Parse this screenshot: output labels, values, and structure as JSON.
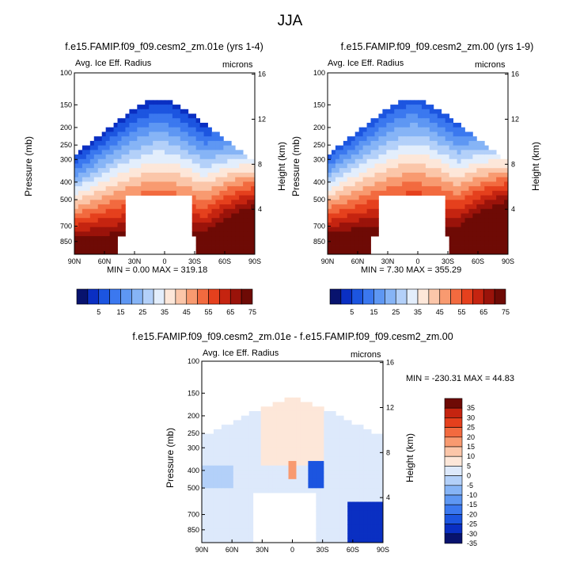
{
  "figure": {
    "title": "JJA"
  },
  "palettes": {
    "abs": [
      "#08136e",
      "#0a2fc2",
      "#1c55e0",
      "#3b78ef",
      "#5e97f3",
      "#86b4f6",
      "#b3d0f9",
      "#e3eefc",
      "#fde7d9",
      "#fbc6a9",
      "#f89a70",
      "#f26a3f",
      "#e5401d",
      "#c52410",
      "#9a130a",
      "#6e0a05"
    ],
    "diff": [
      "#08136e",
      "#0a2fc2",
      "#1c55e0",
      "#3b78ef",
      "#5e97f3",
      "#86b4f6",
      "#b3d0f9",
      "#dde9fb",
      "#fde7d9",
      "#fbc6a9",
      "#f89a70",
      "#f26a3f",
      "#e5401d",
      "#c52410",
      "#6e0a05"
    ]
  },
  "chart_data": [
    {
      "type": "heatmap",
      "title": "f.e15.FAMIP.f09_f09.cesm2_zm.01e (yrs 1-4)",
      "subtitle_left": "Avg. Ice Eff. Radius",
      "subtitle_right": "microns",
      "xlabel": "",
      "ylabel": "Pressure (mb)",
      "ylabel_right": "Height (km)",
      "x_ticks": [
        "90N",
        "60N",
        "30N",
        "0",
        "30S",
        "60S",
        "90S"
      ],
      "x_ticks_values": [
        90,
        60,
        30,
        0,
        -30,
        -60,
        -90
      ],
      "y_ticks": [
        "100",
        "150",
        "200",
        "250",
        "300",
        "400",
        "500",
        "700",
        "850"
      ],
      "y_ticks_values": [
        100,
        150,
        200,
        250,
        300,
        400,
        500,
        700,
        850
      ],
      "y_right_ticks": [
        "16",
        "12",
        "8",
        "4"
      ],
      "y_right_ticks_values": [
        16,
        12,
        8,
        4
      ],
      "ylim": [
        100,
        1000
      ],
      "min_max_text": "MIN =   0.00   MAX = 319.18",
      "colorbar": {
        "labels": [
          "5",
          "15",
          "25",
          "35",
          "45",
          "55",
          "65",
          "75"
        ],
        "levels": [
          0,
          5,
          10,
          15,
          20,
          25,
          30,
          35,
          40,
          45,
          50,
          55,
          60,
          65,
          70,
          75
        ]
      }
    },
    {
      "type": "heatmap",
      "title": "f.e15.FAMIP.f09_f09.cesm2_zm.00 (yrs 1-9)",
      "subtitle_left": "Avg. Ice Eff. Radius",
      "subtitle_right": "microns",
      "xlabel": "",
      "ylabel": "Pressure (mb)",
      "ylabel_right": "Height (km)",
      "x_ticks": [
        "90N",
        "60N",
        "30N",
        "0",
        "30S",
        "60S",
        "90S"
      ],
      "x_ticks_values": [
        90,
        60,
        30,
        0,
        -30,
        -60,
        -90
      ],
      "y_ticks": [
        "100",
        "150",
        "200",
        "250",
        "300",
        "400",
        "500",
        "700",
        "850"
      ],
      "y_ticks_values": [
        100,
        150,
        200,
        250,
        300,
        400,
        500,
        700,
        850
      ],
      "y_right_ticks": [
        "16",
        "12",
        "8",
        "4"
      ],
      "y_right_ticks_values": [
        16,
        12,
        8,
        4
      ],
      "ylim": [
        100,
        1000
      ],
      "min_max_text": "MIN =   7.30   MAX = 355.29",
      "colorbar": {
        "labels": [
          "5",
          "15",
          "25",
          "35",
          "45",
          "55",
          "65",
          "75"
        ],
        "levels": [
          0,
          5,
          10,
          15,
          20,
          25,
          30,
          35,
          40,
          45,
          50,
          55,
          60,
          65,
          70,
          75
        ]
      }
    },
    {
      "type": "heatmap",
      "title": "f.e15.FAMIP.f09_f09.cesm2_zm.01e - f.e15.FAMIP.f09_f09.cesm2_zm.00",
      "subtitle_left": "Avg. Ice Eff. Radius",
      "subtitle_right": "microns",
      "xlabel": "",
      "ylabel": "Pressure (mb)",
      "ylabel_right": "Height (km)",
      "x_ticks": [
        "90N",
        "60N",
        "30N",
        "0",
        "30S",
        "60S",
        "90S"
      ],
      "x_ticks_values": [
        90,
        60,
        30,
        0,
        -30,
        -60,
        -90
      ],
      "y_ticks": [
        "100",
        "150",
        "200",
        "250",
        "300",
        "400",
        "500",
        "700",
        "850"
      ],
      "y_ticks_values": [
        100,
        150,
        200,
        250,
        300,
        400,
        500,
        700,
        850
      ],
      "y_right_ticks": [
        "16",
        "12",
        "8",
        "4"
      ],
      "y_right_ticks_values": [
        16,
        12,
        8,
        4
      ],
      "ylim": [
        100,
        1000
      ],
      "min_max_text": "MIN = -230.31   MAX =  44.83",
      "colorbar": {
        "labels": [
          "35",
          "30",
          "25",
          "20",
          "15",
          "10",
          "5",
          "0",
          "-5",
          "-10",
          "-15",
          "-20",
          "-25",
          "-30",
          "-35"
        ],
        "levels": [
          -35,
          -30,
          -25,
          -20,
          -15,
          -10,
          -5,
          0,
          5,
          10,
          15,
          20,
          25,
          30,
          35
        ]
      }
    }
  ]
}
